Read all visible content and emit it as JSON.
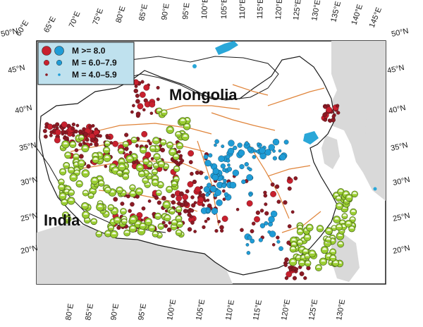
{
  "map": {
    "countries": [
      "Mongolia",
      "India"
    ],
    "colors": {
      "land": "#ffffff",
      "neighbor_land": "#d9d9d9",
      "border": "#1a1a1a",
      "water": "#2aa7d8",
      "legend_bg": "#bfe1ee",
      "m8": "#c8202e",
      "m6_7": "#1f9cd6",
      "m4_5": "#8b1a24",
      "focal_green": "#9acd32",
      "fault": "#e0843a"
    },
    "top_longitudes": [
      "60°E",
      "65°E",
      "70°E",
      "75°E",
      "80°E",
      "85°E",
      "90°E",
      "95°E",
      "100°E",
      "105°E",
      "110°E",
      "115°E",
      "120°E",
      "125°E",
      "130°E",
      "135°E",
      "140°E",
      "145°E"
    ],
    "bottom_longitudes": [
      "80°E",
      "85°E",
      "90°E",
      "95°E",
      "100°E",
      "105°E",
      "110°E",
      "115°E",
      "120°E",
      "125°E",
      "130°E"
    ],
    "left_latitudes": [
      "50°N",
      "45°N",
      "40°N",
      "35°N",
      "30°N",
      "25°N",
      "20°N"
    ],
    "right_latitudes": [
      "50°N",
      "45°N",
      "40°N",
      "35°N",
      "30°N",
      "25°N",
      "20°N"
    ],
    "legend": [
      {
        "label": "M >= 8.0",
        "icon": "large-circle"
      },
      {
        "label": "M = 6.0–7.9",
        "icon": "medium-circle"
      },
      {
        "label": "M = 4.0–5.9",
        "icon": "small-circle"
      }
    ]
  }
}
